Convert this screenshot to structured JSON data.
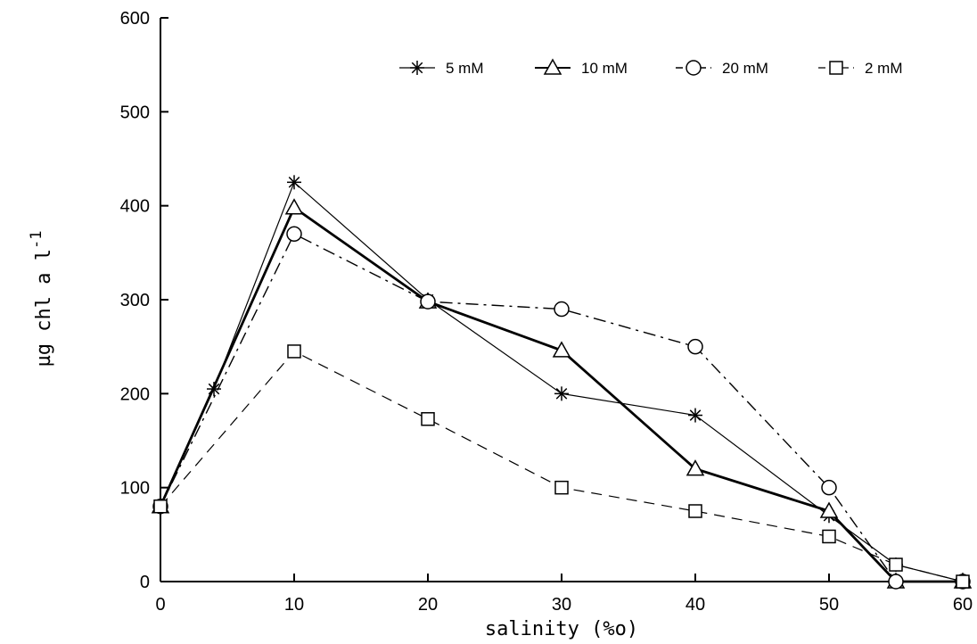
{
  "chart_data": {
    "type": "line",
    "xlabel": "salinity (%o)",
    "ylabel": "µg chl a l",
    "ylabel_superscript": "-1",
    "xlim": [
      0,
      60
    ],
    "ylim": [
      0,
      600
    ],
    "xticks": [
      "0",
      "10",
      "20",
      "30",
      "40",
      "50",
      "60"
    ],
    "yticks": [
      "0",
      "100",
      "200",
      "300",
      "400",
      "500",
      "600"
    ],
    "legend_position": "top",
    "series": [
      {
        "name": "5 mM",
        "marker": "asterisk",
        "line": "thin-solid",
        "x": [
          0,
          4,
          10,
          20,
          30,
          40,
          50,
          55,
          60
        ],
        "y": [
          80,
          205,
          425,
          300,
          200,
          177,
          70,
          18,
          0
        ]
      },
      {
        "name": "10 mM",
        "marker": "triangle",
        "line": "thick-solid",
        "x": [
          0,
          10,
          20,
          30,
          40,
          50,
          55,
          60
        ],
        "y": [
          80,
          398,
          298,
          246,
          120,
          75,
          0,
          0
        ]
      },
      {
        "name": "20 mM",
        "marker": "circle",
        "line": "dash-dot",
        "x": [
          0,
          10,
          20,
          30,
          40,
          50,
          55,
          60
        ],
        "y": [
          80,
          370,
          298,
          290,
          250,
          100,
          0,
          0
        ]
      },
      {
        "name": "2 mM",
        "marker": "square",
        "line": "dashed",
        "x": [
          0,
          10,
          20,
          30,
          40,
          50,
          55,
          60
        ],
        "y": [
          80,
          245,
          173,
          100,
          75,
          48,
          18,
          0
        ]
      }
    ]
  }
}
